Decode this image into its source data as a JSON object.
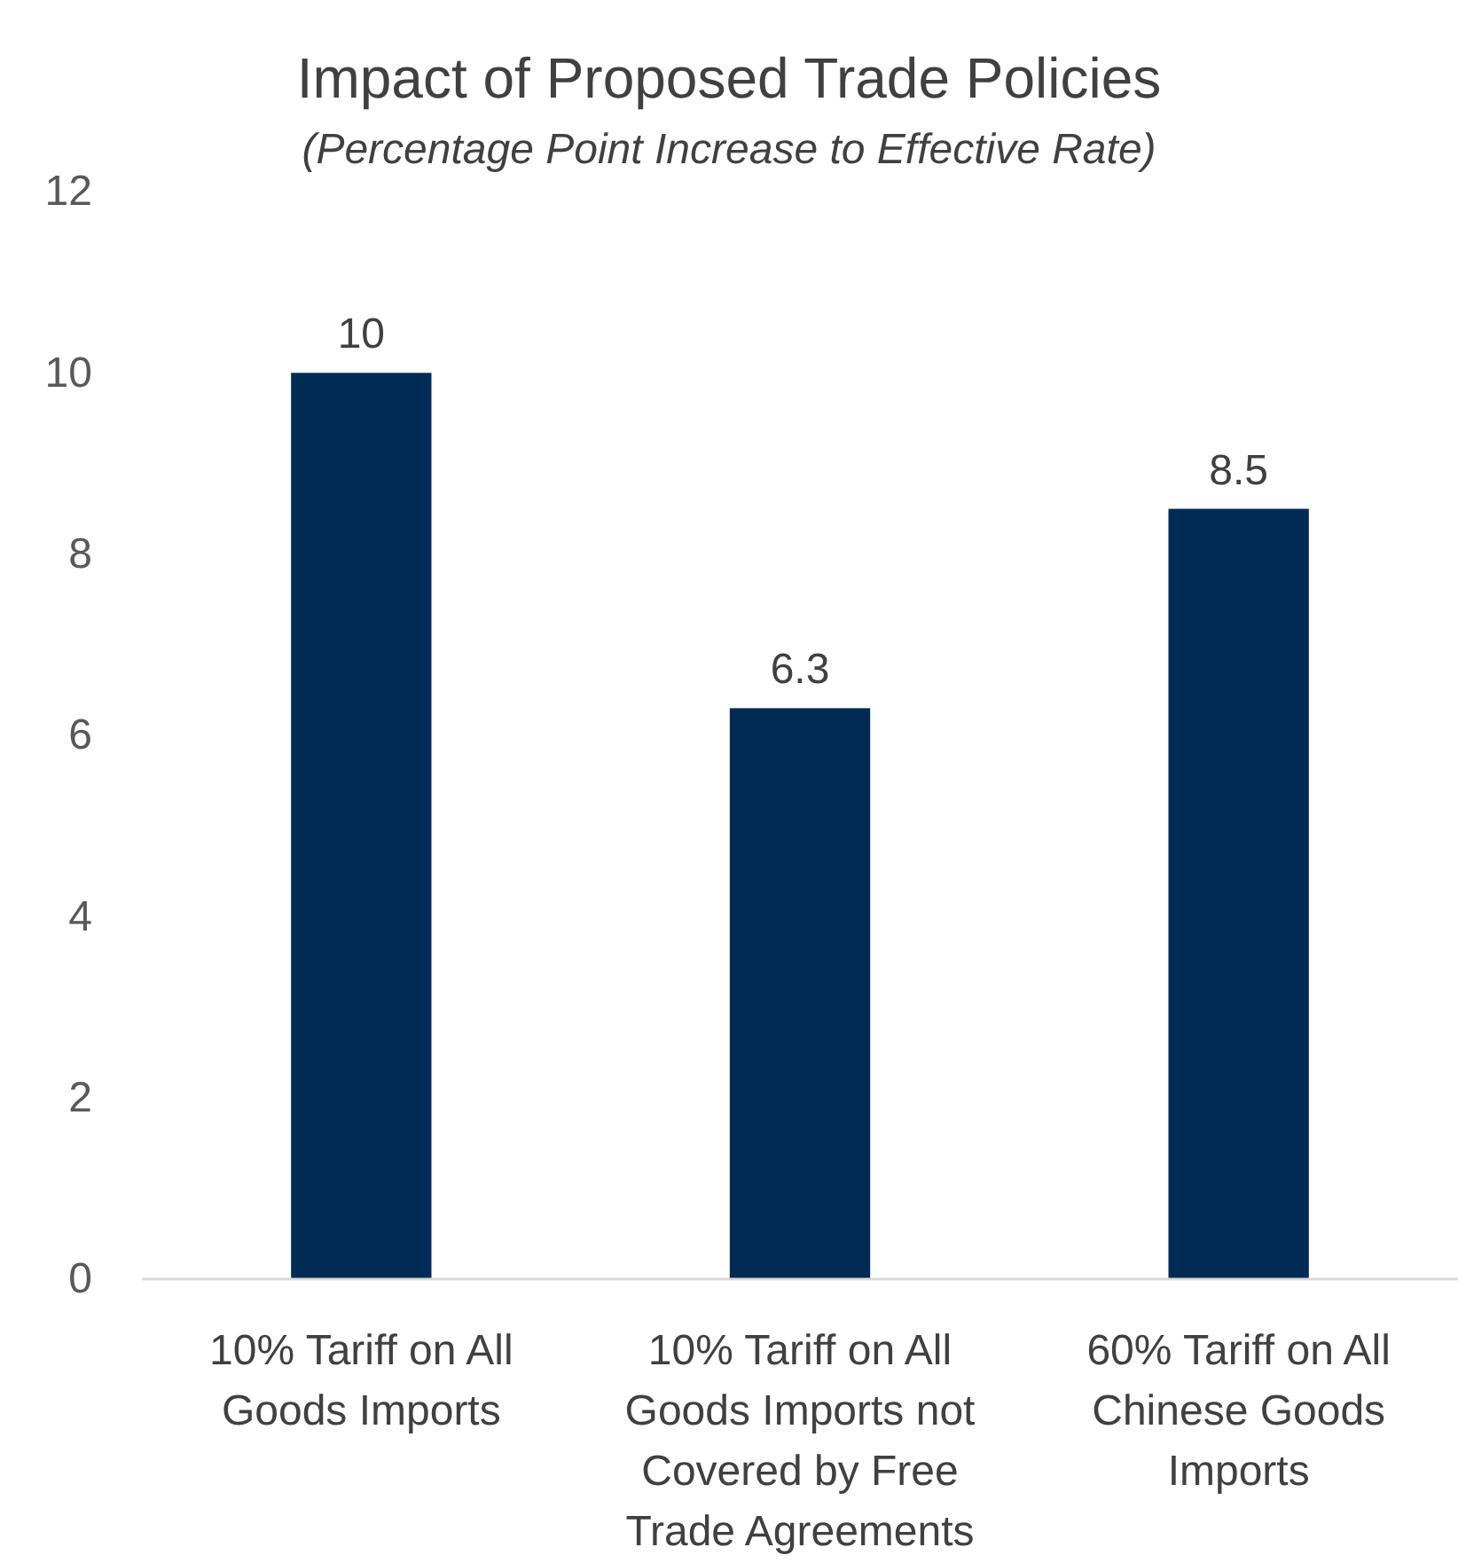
{
  "chart_data": {
    "type": "bar",
    "title": "Impact of Proposed Trade Policies",
    "subtitle": "(Percentage Point Increase to Effective Rate)",
    "categories": [
      "10% Tariff on All Goods Imports",
      "10% Tariff on All Goods Imports not Covered by Free Trade Agreements",
      "60% Tariff on All Chinese Goods Imports"
    ],
    "values": [
      10,
      6.3,
      8.5
    ],
    "color": "#002b55",
    "ylim": [
      0,
      12
    ],
    "yticks": [
      0,
      2,
      4,
      6,
      8,
      10,
      12
    ],
    "grid": false,
    "data_labels": true
  }
}
